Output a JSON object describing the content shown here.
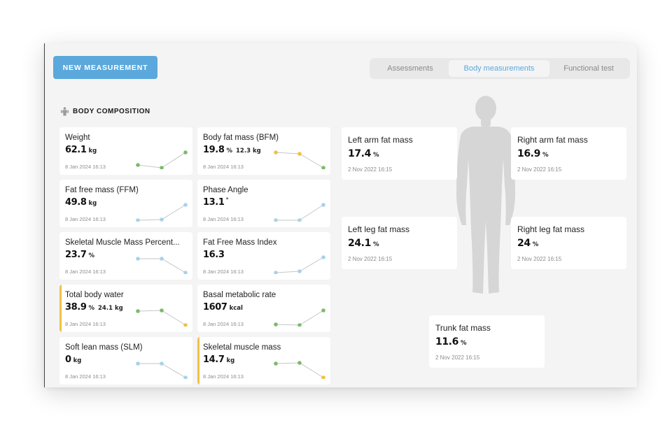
{
  "header": {
    "new_measurement_label": "NEW MEASUREMENT",
    "tabs": [
      {
        "label": "Assessments",
        "active": false
      },
      {
        "label": "Body measurements",
        "active": true
      },
      {
        "label": "Functional test",
        "active": false
      }
    ]
  },
  "section": {
    "title": "BODY COMPOSITION"
  },
  "colors": {
    "accent": "#5ba8dc",
    "flag": "#f0c048",
    "green": "#7cba6a",
    "yellow": "#f0c048",
    "light_blue": "#a8d1ea"
  },
  "metrics": [
    {
      "label": "Weight",
      "value": "62.1",
      "unit": "kg",
      "extra_value": "",
      "extra_unit": "",
      "date": "8 Jan 2024 16:13",
      "flagged": false,
      "trend_points": [
        "green",
        "green",
        "green"
      ]
    },
    {
      "label": "Body fat mass (BFM)",
      "value": "19.8",
      "unit": "%",
      "extra_value": "12.3",
      "extra_unit": "kg",
      "date": "8 Jan 2024 16:13",
      "flagged": false,
      "trend_points": [
        "yellow",
        "yellow",
        "green"
      ]
    },
    {
      "label": "Fat free mass (FFM)",
      "value": "49.8",
      "unit": "kg",
      "extra_value": "",
      "extra_unit": "",
      "date": "8 Jan 2024 16:13",
      "flagged": false,
      "trend_points": [
        "light-blue",
        "light-blue",
        "light-blue"
      ]
    },
    {
      "label": "Phase Angle",
      "value": "13.1",
      "unit": "°",
      "extra_value": "",
      "extra_unit": "",
      "date": "8 Jan 2024 16:13",
      "flagged": false,
      "trend_points": [
        "light-blue",
        "light-blue",
        "light-blue"
      ]
    },
    {
      "label": "Skeletal Muscle Mass Percent...",
      "value": "23.7",
      "unit": "%",
      "extra_value": "",
      "extra_unit": "",
      "date": "8 Jan 2024 16:13",
      "flagged": false,
      "trend_points": [
        "light-blue",
        "light-blue",
        "light-blue"
      ]
    },
    {
      "label": "Fat Free Mass Index",
      "value": "16.3",
      "unit": "",
      "extra_value": "",
      "extra_unit": "",
      "date": "8 Jan 2024 16:13",
      "flagged": false,
      "trend_points": [
        "light-blue",
        "light-blue",
        "light-blue"
      ]
    },
    {
      "label": "Total body water",
      "value": "38.9",
      "unit": "%",
      "extra_value": "24.1",
      "extra_unit": "kg",
      "date": "8 Jan 2024 16:13",
      "flagged": true,
      "trend_points": [
        "green",
        "green",
        "yellow"
      ]
    },
    {
      "label": "Basal metabolic rate",
      "value": "1607",
      "unit": "kcal",
      "extra_value": "",
      "extra_unit": "",
      "date": "8 Jan 2024 16:13",
      "flagged": false,
      "trend_points": [
        "green",
        "green",
        "green"
      ]
    },
    {
      "label": "Soft lean mass (SLM)",
      "value": "0",
      "unit": "kg",
      "extra_value": "",
      "extra_unit": "",
      "date": "8 Jan 2024 16:13",
      "flagged": false,
      "trend_points": [
        "light-blue",
        "light-blue",
        "light-blue"
      ]
    },
    {
      "label": "Skeletal muscle mass",
      "value": "14.7",
      "unit": "kg",
      "extra_value": "",
      "extra_unit": "",
      "date": "8 Jan 2024 16:13",
      "flagged": true,
      "trend_points": [
        "green",
        "green",
        "yellow"
      ]
    }
  ],
  "regions": [
    {
      "label": "Left arm fat mass",
      "value": "17.4",
      "unit": "%",
      "date": "2 Nov 2022 16:15"
    },
    {
      "label": "Right arm fat mass",
      "value": "16.9",
      "unit": "%",
      "date": "2 Nov 2022 16:15"
    },
    {
      "label": "Left leg fat mass",
      "value": "24.1",
      "unit": "%",
      "date": "2 Nov 2022 16:15"
    },
    {
      "label": "Right leg fat mass",
      "value": "24",
      "unit": "%",
      "date": "2 Nov 2022 16:15"
    },
    {
      "label": "Trunk fat mass",
      "value": "11.6",
      "unit": "%",
      "date": "2 Nov 2022 16:15"
    }
  ]
}
